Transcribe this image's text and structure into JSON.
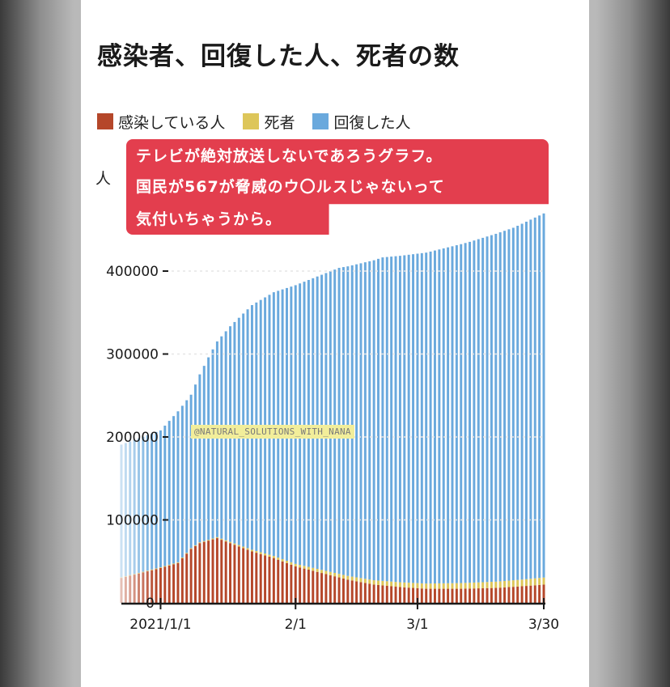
{
  "chart_data": {
    "type": "stacked-bar",
    "title": "感染者、回復した人、死者の数",
    "ylabel": "人",
    "ylim": [
      0,
      480000
    ],
    "yticks": [
      0,
      100000,
      200000,
      300000,
      400000
    ],
    "ytick_labels": [
      "0",
      "100000",
      "200000",
      "300000",
      "400000"
    ],
    "xtick_labels": [
      {
        "label": "2021/1/1",
        "day": 9
      },
      {
        "label": "2/1",
        "day": 40
      },
      {
        "label": "3/1",
        "day": 68
      },
      {
        "label": "3/30",
        "day": 97
      }
    ],
    "legend_position": "top",
    "series": [
      {
        "name": "感染している人",
        "color": "#b5472a",
        "points": [
          [
            0,
            30000
          ],
          [
            9,
            42000
          ],
          [
            13,
            48000
          ],
          [
            16,
            65000
          ],
          [
            18,
            72000
          ],
          [
            22,
            78000
          ],
          [
            26,
            70000
          ],
          [
            30,
            62000
          ],
          [
            35,
            54000
          ],
          [
            40,
            44000
          ],
          [
            46,
            36000
          ],
          [
            52,
            28000
          ],
          [
            58,
            22000
          ],
          [
            64,
            19000
          ],
          [
            70,
            17000
          ],
          [
            78,
            17000
          ],
          [
            86,
            18000
          ],
          [
            92,
            20000
          ],
          [
            97,
            22000
          ]
        ]
      },
      {
        "name": "死者",
        "color": "#ddc65a",
        "points": [
          [
            0,
            800
          ],
          [
            20,
            1000
          ],
          [
            40,
            3000
          ],
          [
            60,
            5500
          ],
          [
            80,
            7000
          ],
          [
            97,
            8500
          ]
        ]
      },
      {
        "name": "回復した人",
        "color": "#6aa9dd",
        "points": [
          [
            0,
            160000
          ],
          [
            9,
            165000
          ],
          [
            13,
            182000
          ],
          [
            16,
            185000
          ],
          [
            20,
            220000
          ],
          [
            25,
            260000
          ],
          [
            30,
            295000
          ],
          [
            35,
            318000
          ],
          [
            40,
            336000
          ],
          [
            50,
            369000
          ],
          [
            60,
            390000
          ],
          [
            70,
            399000
          ],
          [
            80,
            411000
          ],
          [
            90,
            425000
          ],
          [
            97,
            439000
          ]
        ]
      }
    ]
  },
  "legend": {
    "items": [
      {
        "label": "感染している人",
        "color": "#b5472a"
      },
      {
        "label": "死者",
        "color": "#ddc65a"
      },
      {
        "label": "回復した人",
        "color": "#6aa9dd"
      }
    ]
  },
  "callout": {
    "line1": "テレビが絶対放送しないであろうグラフ。",
    "line2": "国民が567が脅威のウ〇ルスじゃないって",
    "line3": "気付いちゃうから。"
  },
  "watermark": "@NATURAL_SOLUTIONS_WITH_NANA"
}
